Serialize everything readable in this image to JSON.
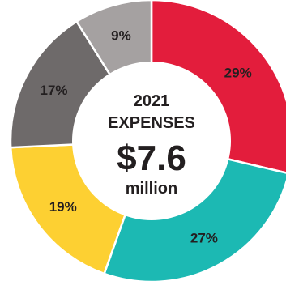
{
  "chart_data": {
    "type": "pie",
    "slices": [
      {
        "value": 29,
        "label": "29%",
        "color": "#e31d3c"
      },
      {
        "value": 27,
        "label": "27%",
        "color": "#1cb9b3"
      },
      {
        "value": 19,
        "label": "19%",
        "color": "#fdd032"
      },
      {
        "value": 17,
        "label": "17%",
        "color": "#6e6a6a"
      },
      {
        "value": 9,
        "label": "9%",
        "color": "#a5a1a1"
      }
    ],
    "center": {
      "year": "2021",
      "heading": "EXPENSES",
      "amount": "$7.6",
      "unit": "million"
    },
    "start_angle": "12 o'clock",
    "direction": "clockwise",
    "hole_color": "#ffffff",
    "label_color": "#231f20"
  }
}
